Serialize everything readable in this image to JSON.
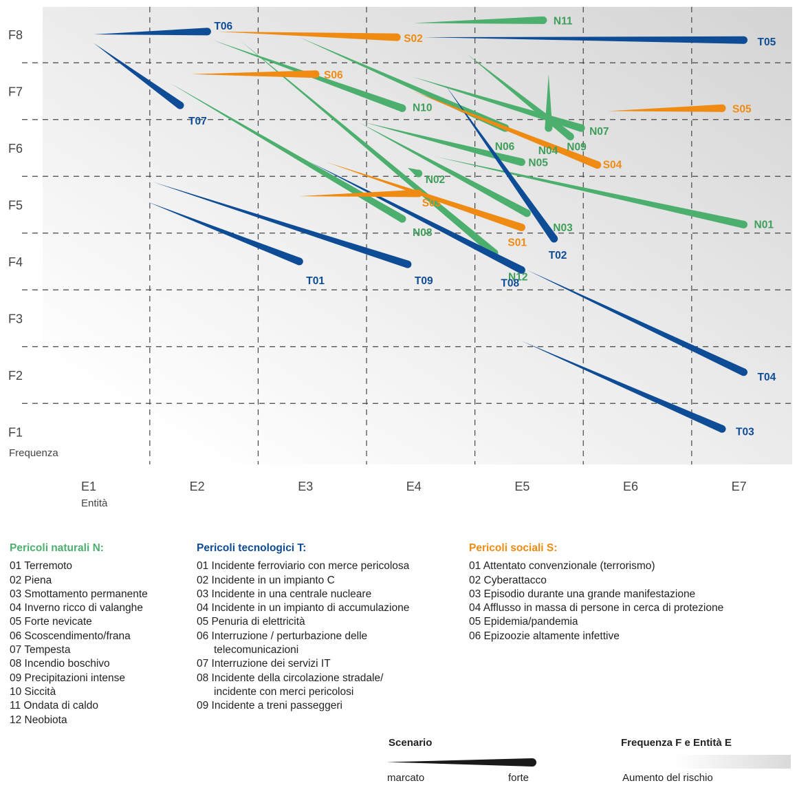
{
  "chart_data": {
    "type": "scatter",
    "xlabel": "Entità",
    "ylabel": "Frequenza",
    "x_ticks": [
      "E1",
      "E2",
      "E3",
      "E4",
      "E5",
      "E6",
      "E7"
    ],
    "y_ticks": [
      "F1",
      "F2",
      "F3",
      "F4",
      "F5",
      "F6",
      "F7",
      "F8"
    ],
    "xlim": [
      0.6,
      7.5
    ],
    "ylim": [
      0.6,
      8.5
    ],
    "grid": true,
    "note": "Each hazard is a wedge from its marked scenario (thin end) to its strong scenario (thick end).",
    "colors": {
      "N": "#4caf6e",
      "T": "#0e4c96",
      "S": "#ef8a12",
      "N_text": "#3e9e5a"
    },
    "series": [
      {
        "name": "Pericoli naturali N",
        "group": "N",
        "items": [
          {
            "id": "N01",
            "marked": [
              4.2,
              5.85
            ],
            "strong": [
              7.05,
              4.65
            ]
          },
          {
            "id": "N02",
            "marked": [
              3.95,
              5.65
            ],
            "strong": [
              4.05,
              5.55
            ]
          },
          {
            "id": "N03",
            "marked": [
              3.5,
              6.45
            ],
            "strong": [
              5.05,
              4.85
            ]
          },
          {
            "id": "N04",
            "marked": [
              5.25,
              7.3
            ],
            "strong": [
              5.25,
              6.35
            ]
          },
          {
            "id": "N05",
            "marked": [
              3.55,
              6.45
            ],
            "strong": [
              5.0,
              5.75
            ]
          },
          {
            "id": "N06",
            "marked": [
              2.95,
              7.95
            ],
            "strong": [
              4.85,
              6.35
            ]
          },
          {
            "id": "N07",
            "marked": [
              4.0,
              7.25
            ],
            "strong": [
              5.55,
              6.35
            ]
          },
          {
            "id": "N08",
            "marked": [
              1.75,
              7.15
            ],
            "strong": [
              3.9,
              4.75
            ]
          },
          {
            "id": "N09",
            "marked": [
              4.5,
              7.65
            ],
            "strong": [
              5.45,
              6.2
            ]
          },
          {
            "id": "N10",
            "marked": [
              2.15,
              7.9
            ],
            "strong": [
              3.9,
              6.7
            ]
          },
          {
            "id": "N11",
            "marked": [
              4.0,
              8.2
            ],
            "strong": [
              5.2,
              8.25
            ]
          },
          {
            "id": "N12",
            "marked": [
              2.4,
              7.9
            ],
            "strong": [
              4.75,
              4.15
            ]
          }
        ]
      },
      {
        "name": "Pericoli tecnologici T",
        "group": "T",
        "items": [
          {
            "id": "T01",
            "marked": [
              1.55,
              5.05
            ],
            "strong": [
              2.95,
              4.0
            ]
          },
          {
            "id": "T02",
            "marked": [
              4.3,
              7.1
            ],
            "strong": [
              5.3,
              4.4
            ]
          },
          {
            "id": "T03",
            "marked": [
              5.0,
              2.6
            ],
            "strong": [
              6.85,
              1.05
            ]
          },
          {
            "id": "T04",
            "marked": [
              5.05,
              3.85
            ],
            "strong": [
              7.05,
              2.05
            ]
          },
          {
            "id": "T05",
            "marked": [
              4.1,
              7.95
            ],
            "strong": [
              7.05,
              7.9
            ]
          },
          {
            "id": "T06",
            "marked": [
              1.05,
              8.0
            ],
            "strong": [
              2.1,
              8.05
            ]
          },
          {
            "id": "T07",
            "marked": [
              1.05,
              7.85
            ],
            "strong": [
              1.85,
              6.75
            ]
          },
          {
            "id": "T08",
            "marked": [
              3.05,
              5.75
            ],
            "strong": [
              5.0,
              3.85
            ]
          },
          {
            "id": "T09",
            "marked": [
              1.6,
              5.4
            ],
            "strong": [
              3.95,
              3.95
            ]
          }
        ]
      },
      {
        "name": "Pericoli sociali S",
        "group": "S",
        "items": [
          {
            "id": "S01",
            "marked": [
              3.2,
              5.75
            ],
            "strong": [
              5.0,
              4.6
            ]
          },
          {
            "id": "S02",
            "marked": [
              2.2,
              8.05
            ],
            "strong": [
              3.85,
              7.95
            ]
          },
          {
            "id": "S03",
            "marked": [
              2.95,
              5.15
            ],
            "strong": [
              4.05,
              5.2
            ]
          },
          {
            "id": "S04",
            "marked": [
              4.0,
              7.0
            ],
            "strong": [
              5.7,
              5.7
            ]
          },
          {
            "id": "S05",
            "marked": [
              5.8,
              6.65
            ],
            "strong": [
              6.85,
              6.7
            ]
          },
          {
            "id": "S06",
            "marked": [
              1.95,
              7.3
            ],
            "strong": [
              3.1,
              7.3
            ]
          }
        ]
      }
    ]
  },
  "legend": {
    "natural": {
      "title": "Pericoli naturali N:",
      "items": [
        "01 Terremoto",
        "02 Piena",
        "03 Smottamento permanente",
        "04 Inverno ricco di valanghe",
        "05 Forte nevicate",
        "06 Scoscendimento/frana",
        "07 Tempesta",
        "08 Incendio boschivo",
        "09 Precipitazioni intense",
        "10 Siccità",
        "11 Ondata di caldo",
        "12 Neobiota"
      ]
    },
    "technological": {
      "title": "Pericoli tecnologici T:",
      "items": [
        "01 Incidente ferroviario con merce pericolosa",
        "02 Incidente in un impianto C",
        "03 Incidente in una centrale nucleare",
        "04 Incidente in un impianto di accumulazione",
        "05 Penuria di elettricità",
        "06 Interruzione / perturbazione delle",
        "telecomunicazioni",
        "07 Interruzione dei servizi IT",
        "08 Incidente della circolazione stradale/",
        "incidente con merci pericolosi",
        "09 Incidente a treni passeggeri"
      ]
    },
    "social": {
      "title": "Pericoli sociali S:",
      "items": [
        "01 Attentato convenzionale (terrorismo)",
        "02 Cyberattacco",
        "03 Episodio durante una grande manifestazione",
        "04 Afflusso in massa di persone in cerca di protezione",
        "05 Epidemia/pandemia",
        "06 Epizoozie altamente infettive"
      ]
    }
  },
  "key": {
    "scenario_title": "Scenario",
    "scenario_marked": "marcato",
    "scenario_strong": "forte",
    "freq_title": "Frequenza F e Entità E",
    "freq_label": "Aumento del rischio"
  }
}
